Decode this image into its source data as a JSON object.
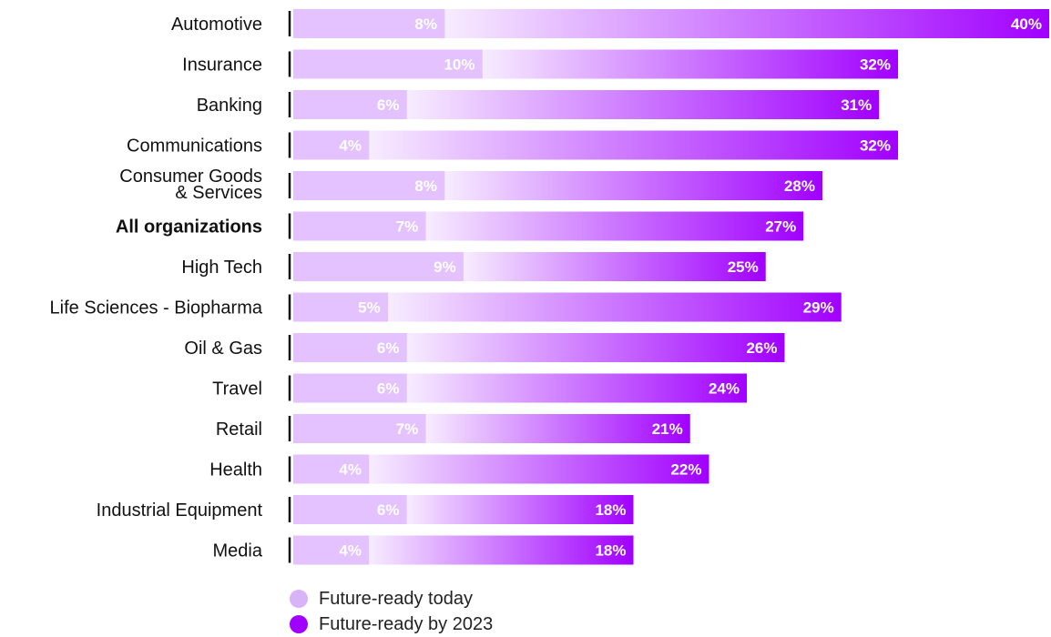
{
  "chart_data": {
    "type": "bar",
    "orientation": "horizontal",
    "categories": [
      "Automotive",
      "Insurance",
      "Banking",
      "Communications",
      "Consumer Goods\n& Services",
      "All organizations",
      "High Tech",
      "Life Sciences - Biopharma",
      "Oil & Gas",
      "Travel",
      "Retail",
      "Health",
      "Industrial Equipment",
      "Media"
    ],
    "highlight_category": "All organizations",
    "series": [
      {
        "name": "Future-ready today",
        "color": "#d9b3f7",
        "values": [
          8,
          10,
          6,
          4,
          8,
          7,
          9,
          5,
          6,
          6,
          7,
          4,
          6,
          4
        ],
        "labels": [
          "8%",
          "10%",
          "6%",
          "4%",
          "8%",
          "7%",
          "9%",
          "5%",
          "6%",
          "6%",
          "7%",
          "4%",
          "6%",
          "4%"
        ]
      },
      {
        "name": "Future-ready by 2023",
        "color": "#a100ff",
        "values": [
          40,
          32,
          31,
          32,
          28,
          27,
          25,
          29,
          26,
          24,
          21,
          22,
          18,
          18
        ],
        "labels": [
          "40%",
          "32%",
          "31%",
          "32%",
          "28%",
          "27%",
          "25%",
          "29%",
          "26%",
          "24%",
          "21%",
          "22%",
          "18%",
          "18%"
        ]
      }
    ],
    "stacked": true,
    "legend_position": "bottom-left",
    "grid": false
  },
  "legend": {
    "items": [
      {
        "label": "Future-ready today",
        "color": "#d9b3f7"
      },
      {
        "label": "Future-ready by 2023",
        "color": "#a100ff"
      }
    ]
  },
  "colors": {
    "label_text": "#111111",
    "value_text": "#ffffff",
    "axis_line": "#111111",
    "bar_light": "#f7ecff",
    "bar_mid": "#e3c2ff",
    "bar_dark": "#a100ff"
  }
}
